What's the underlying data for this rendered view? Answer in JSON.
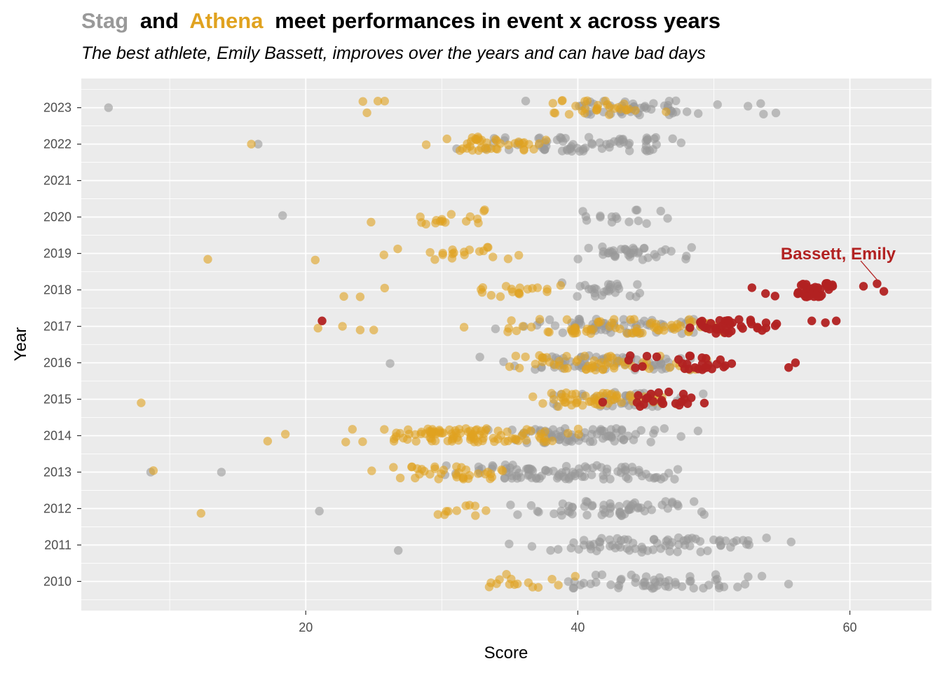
{
  "colors": {
    "stag": "#999999",
    "athena": "#e0a21f",
    "highlight": "#b22222",
    "panel": "#ebebeb",
    "grid_major": "#ffffff",
    "text": "#000000",
    "tick_text": "#4d4d4d"
  },
  "title": {
    "team1": "Stag",
    "connector": "and",
    "team2": "Athena",
    "rest": "meet performances in event x across years"
  },
  "subtitle": "The best athlete, Emily Bassett, improves over the years and can have bad days",
  "annotation": {
    "label": "Bassett, Emily",
    "target": {
      "x": 62,
      "y": 2018.2
    }
  },
  "chart_data": {
    "type": "scatter",
    "xlabel": "Score",
    "ylabel": "Year",
    "xlim": [
      3.5,
      66
    ],
    "ylim": [
      2009.2,
      2023.8
    ],
    "x_ticks": [
      20,
      40,
      60
    ],
    "x_minor": [
      10,
      30,
      50
    ],
    "y_ticks": [
      2010,
      2011,
      2012,
      2013,
      2014,
      2015,
      2016,
      2017,
      2018,
      2019,
      2020,
      2021,
      2022,
      2023
    ],
    "grid": true,
    "legend": "none",
    "series": [
      {
        "team": "Stag",
        "by_year": [
          {
            "year": 2023,
            "points": [
              [
                5.5,
                0.0
              ]
            ],
            "ranges": [
              [
                33.5,
                58,
                50
              ]
            ]
          },
          {
            "year": 2022,
            "points": [
              [
                16.5,
                0.0
              ]
            ],
            "ranges": [
              [
                27.5,
                53,
                70
              ]
            ]
          },
          {
            "year": 2021,
            "points": [],
            "ranges": []
          },
          {
            "year": 2020,
            "points": [
              [
                18.3,
                0.04
              ]
            ],
            "ranges": [
              [
                38,
                48,
                16
              ]
            ]
          },
          {
            "year": 2019,
            "points": [],
            "ranges": [
              [
                38,
                51,
                38
              ]
            ]
          },
          {
            "year": 2018,
            "points": [],
            "ranges": [
              [
                36,
                48,
                26
              ]
            ]
          },
          {
            "year": 2017,
            "points": [],
            "ranges": [
              [
                31,
                55,
                65
              ]
            ]
          },
          {
            "year": 2016,
            "points": [
              [
                26.2,
                -0.02
              ]
            ],
            "ranges": [
              [
                28.5,
                55,
                70
              ]
            ]
          },
          {
            "year": 2015,
            "points": [],
            "ranges": [
              [
                35,
                52,
                40
              ]
            ]
          },
          {
            "year": 2014,
            "points": [],
            "ranges": [
              [
                30,
                51,
                75
              ]
            ]
          },
          {
            "year": 2013,
            "points": [
              [
                8.6,
                0.0
              ],
              [
                13.8,
                0.0
              ]
            ],
            "ranges": [
              [
                25,
                53.5,
                95
              ]
            ]
          },
          {
            "year": 2012,
            "points": [
              [
                21,
                -0.07
              ]
            ],
            "ranges": [
              [
                31,
                53.5,
                60
              ]
            ]
          },
          {
            "year": 2011,
            "points": [
              [
                26.8,
                -0.15
              ]
            ],
            "ranges": [
              [
                31,
                62,
                75
              ]
            ]
          },
          {
            "year": 2010,
            "points": [],
            "ranges": [
              [
                31,
                61,
                55
              ]
            ]
          }
        ]
      },
      {
        "team": "Athena",
        "by_year": [
          {
            "year": 2023,
            "points": [
              [
                24.2,
                0.17
              ],
              [
                24.5,
                -0.14
              ],
              [
                25.3,
                0.18
              ],
              [
                25.8,
                0.18
              ]
            ],
            "ranges": [
              [
                33.5,
                49,
                30
              ]
            ]
          },
          {
            "year": 2022,
            "points": [
              [
                16.0,
                0.0
              ]
            ],
            "ranges": [
              [
                26.5,
                41,
                40
              ]
            ]
          },
          {
            "year": 2021,
            "points": [],
            "ranges": []
          },
          {
            "year": 2020,
            "points": [
              [
                24.8,
                -0.14
              ]
            ],
            "ranges": [
              [
                25,
                36,
                16
              ]
            ]
          },
          {
            "year": 2019,
            "points": [
              [
                12.8,
                -0.16
              ],
              [
                20.7,
                -0.18
              ]
            ],
            "ranges": [
              [
                23.5,
                39,
                20
              ]
            ]
          },
          {
            "year": 2018,
            "points": [
              [
                22.8,
                -0.18
              ],
              [
                24,
                -0.19
              ],
              [
                25.8,
                0.05
              ]
            ],
            "ranges": [
              [
                30.5,
                42,
                18
              ]
            ]
          },
          {
            "year": 2017,
            "points": [
              [
                20.9,
                -0.05
              ],
              [
                22.7,
                0.0
              ],
              [
                24,
                -0.1
              ],
              [
                25,
                -0.1
              ]
            ],
            "ranges": [
              [
                27.5,
                57,
                70
              ]
            ]
          },
          {
            "year": 2016,
            "points": [],
            "ranges": [
              [
                28.5,
                55,
                55
              ]
            ]
          },
          {
            "year": 2015,
            "points": [
              [
                7.9,
                -0.1
              ]
            ],
            "ranges": [
              [
                33.5,
                51,
                55
              ]
            ]
          },
          {
            "year": 2014,
            "points": [
              [
                17.2,
                -0.15
              ],
              [
                18.5,
                0.04
              ]
            ],
            "ranges": [
              [
                20,
                44,
                100
              ]
            ]
          },
          {
            "year": 2013,
            "points": [
              [
                8.8,
                0.04
              ]
            ],
            "ranges": [
              [
                21.7,
                38,
                35
              ]
            ]
          },
          {
            "year": 2012,
            "points": [
              [
                12.3,
                -0.13
              ]
            ],
            "ranges": [
              [
                28.5,
                35.5,
                10
              ]
            ]
          },
          {
            "year": 2011,
            "points": [],
            "ranges": []
          },
          {
            "year": 2010,
            "points": [],
            "ranges": [
              [
                31.5,
                42,
                15
              ]
            ]
          }
        ]
      },
      {
        "team": "Bassett, Emily",
        "by_year": [
          {
            "year": 2018,
            "points": [
              [
                52.8,
                0.06
              ],
              [
                53.8,
                -0.1
              ],
              [
                54.5,
                -0.17
              ],
              [
                62.5,
                -0.04
              ],
              [
                62,
                0.17
              ],
              [
                61,
                0.1
              ]
            ],
            "ranges": [
              [
                55,
                60,
                40
              ]
            ]
          },
          {
            "year": 2017,
            "points": [
              [
                21.2,
                0.15
              ],
              [
                57.2,
                0.15
              ],
              [
                58.2,
                0.1
              ],
              [
                59,
                0.15
              ]
            ],
            "ranges": [
              [
                46,
                57,
                40
              ]
            ]
          },
          {
            "year": 2016,
            "points": [
              [
                55.5,
                -0.13
              ],
              [
                56,
                0.0
              ]
            ],
            "ranges": [
              [
                41.5,
                55,
                28
              ]
            ]
          },
          {
            "year": 2015,
            "points": [],
            "ranges": [
              [
                41,
                51,
                22
              ]
            ]
          }
        ]
      }
    ]
  }
}
